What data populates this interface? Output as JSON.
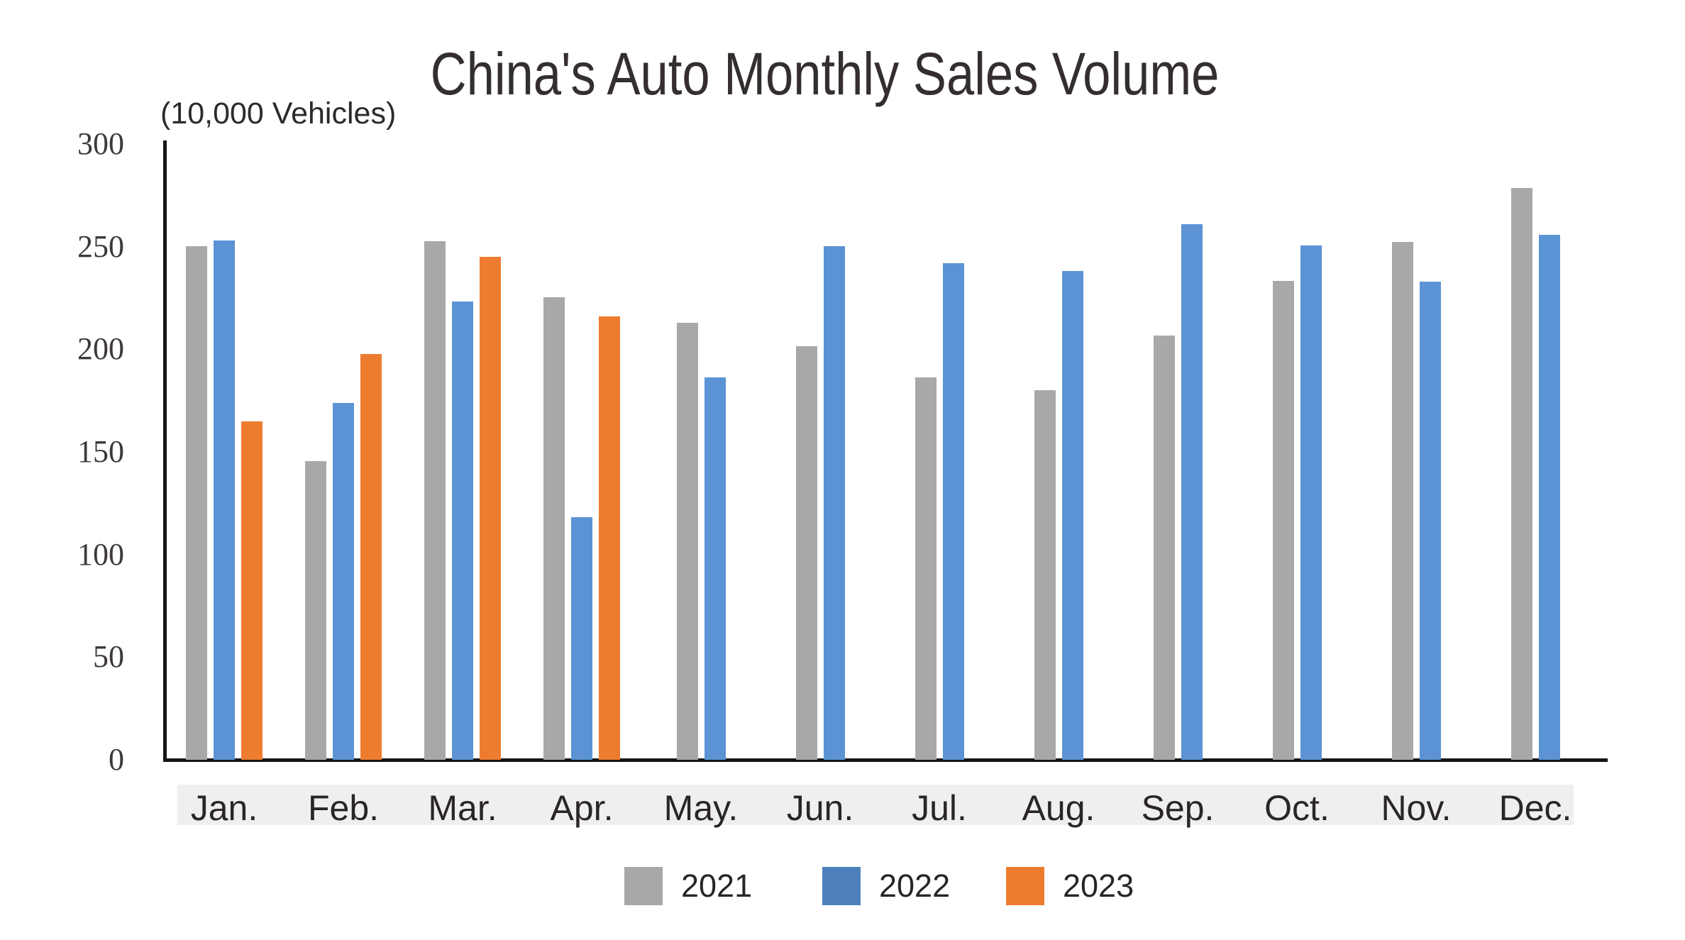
{
  "title": "China's Auto Monthly Sales Volume",
  "y_axis_unit": "(10,000 Vehicles)",
  "colors": {
    "series_2021": "#a8a8a8",
    "series_2022": "#5b93d4",
    "series_2022_legend": "#4d80ba",
    "series_2023": "#ee7c2f",
    "axis_line": "#151515",
    "x_label_band": "#f0eff0",
    "title_text": "#342e2e"
  },
  "chart_data": {
    "type": "bar",
    "title": "China's Auto Monthly Sales Volume",
    "ylabel": "(10,000 Vehicles)",
    "xlabel": "",
    "ylim": [
      0,
      300
    ],
    "yticks": [
      300,
      250,
      200,
      150,
      100,
      50,
      0
    ],
    "grid": false,
    "legend_position": "bottom",
    "categories": [
      "Jan.",
      "Feb.",
      "Mar.",
      "Apr.",
      "May.",
      "Jun.",
      "Jul.",
      "Aug.",
      "Sep.",
      "Oct.",
      "Nov.",
      "Dec."
    ],
    "series": [
      {
        "name": "2021",
        "color": "#a8a8a8",
        "legend_color": "#a8a8a8",
        "values": [
          250.3,
          145.5,
          252.6,
          225.2,
          212.8,
          201.5,
          186.4,
          179.9,
          206.7,
          233.3,
          252.2,
          278.6
        ]
      },
      {
        "name": "2022",
        "color": "#5b93d4",
        "legend_color": "#4d80ba",
        "values": [
          253.1,
          173.7,
          223.4,
          118.1,
          186.2,
          250.2,
          242.0,
          238.3,
          261.0,
          250.5,
          232.8,
          255.6
        ]
      },
      {
        "name": "2023",
        "color": "#ee7c2f",
        "legend_color": "#ee7c2f",
        "values": [
          164.9,
          197.6,
          245.1,
          215.9,
          null,
          null,
          null,
          null,
          null,
          null,
          null,
          null
        ]
      }
    ]
  }
}
